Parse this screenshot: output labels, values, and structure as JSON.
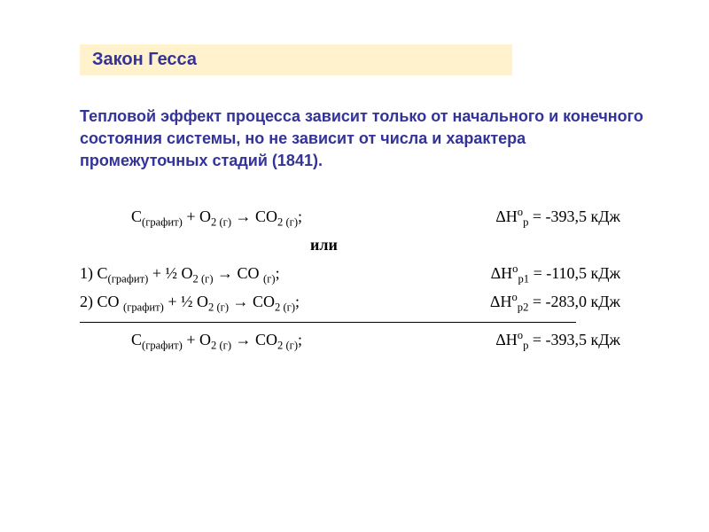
{
  "colors": {
    "title_bg": "#fff2cc",
    "title_fg": "#333399",
    "body_fg": "#333399",
    "eq_fg": "#000000",
    "page_bg": "#ffffff"
  },
  "typography": {
    "title_fontsize_pt": 15,
    "body_fontsize_pt": 13,
    "eq_fontsize_pt": 13,
    "eq_font_family": "Times New Roman"
  },
  "title": "Закон Гесса",
  "law": "Тепловой эффект процесса зависит только от начального и конечного состояния системы, но не зависит от числа и характера промежуточных стадий (1841).",
  "eq_main": {
    "lhs_pre": "C",
    "lhs_sub1": "(графит)",
    "plus": " + O",
    "o2_sub": "2 (г)",
    "arrow": " → CO",
    "co2_sub": "2 (г)",
    "semicolon": ";",
    "delta": "ΔH",
    "delta_sup": "o",
    "delta_sub": "р",
    "value": " = -393,5 кДж"
  },
  "or_label": "или",
  "eq1": {
    "num": "1)  ",
    "c": "C",
    "c_sub": "(графит)",
    "plus": " + ½ O",
    "o2_sub": "2 (г)",
    "arrow": " → CO ",
    "co_sub": "(г)",
    "semicolon": ";",
    "delta": "ΔH",
    "delta_sup": "o",
    "delta_sub": "р1",
    "value": " = -110,5 кДж"
  },
  "eq2": {
    "num": "2)  ",
    "co": "CO ",
    "co_sub": "(графит)",
    "plus": " + ½ O",
    "o2_sub": "2 (г)",
    "arrow": " → CO",
    "co2_sub": "2 (г)",
    "semicolon": ";",
    "delta": "ΔH",
    "delta_sup": "o",
    "delta_sub": "р2",
    "value": " = -283,0 кДж"
  },
  "eq_sum": {
    "c": "C",
    "c_sub": "(графит)",
    "plus": " + O",
    "o2_sub": "2 (г)",
    "arrow": " → CO",
    "co2_sub": "2 (г)",
    "semicolon": ";",
    "delta": "ΔH",
    "delta_sup": "o",
    "delta_sub": "р",
    "value": " = -393,5 кДж"
  }
}
